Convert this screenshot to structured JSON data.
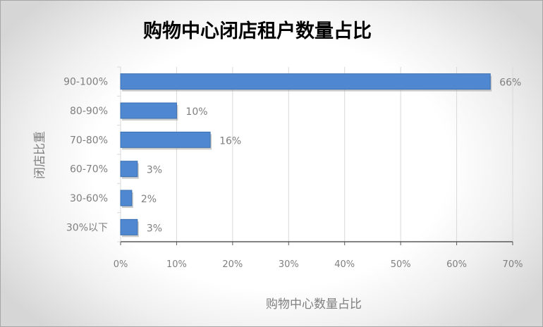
{
  "chart_data": {
    "type": "bar",
    "orientation": "horizontal",
    "title": "购物中心闭店租户数量占比",
    "xlabel": "购物中心数量占比",
    "ylabel": "闭店比重",
    "categories": [
      "90-100%",
      "80-90%",
      "70-80%",
      "60-70%",
      "30-60%",
      "30%以下"
    ],
    "values": [
      66,
      10,
      16,
      3,
      2,
      3
    ],
    "data_labels": [
      "66%",
      "10%",
      "16%",
      "3%",
      "2%",
      "3%"
    ],
    "xlim": [
      0,
      70
    ],
    "xticks": [
      "0%",
      "10%",
      "20%",
      "30%",
      "40%",
      "50%",
      "60%",
      "70%"
    ],
    "grid": "vertical",
    "legend": "none",
    "bar_color": "#4f88d0"
  }
}
